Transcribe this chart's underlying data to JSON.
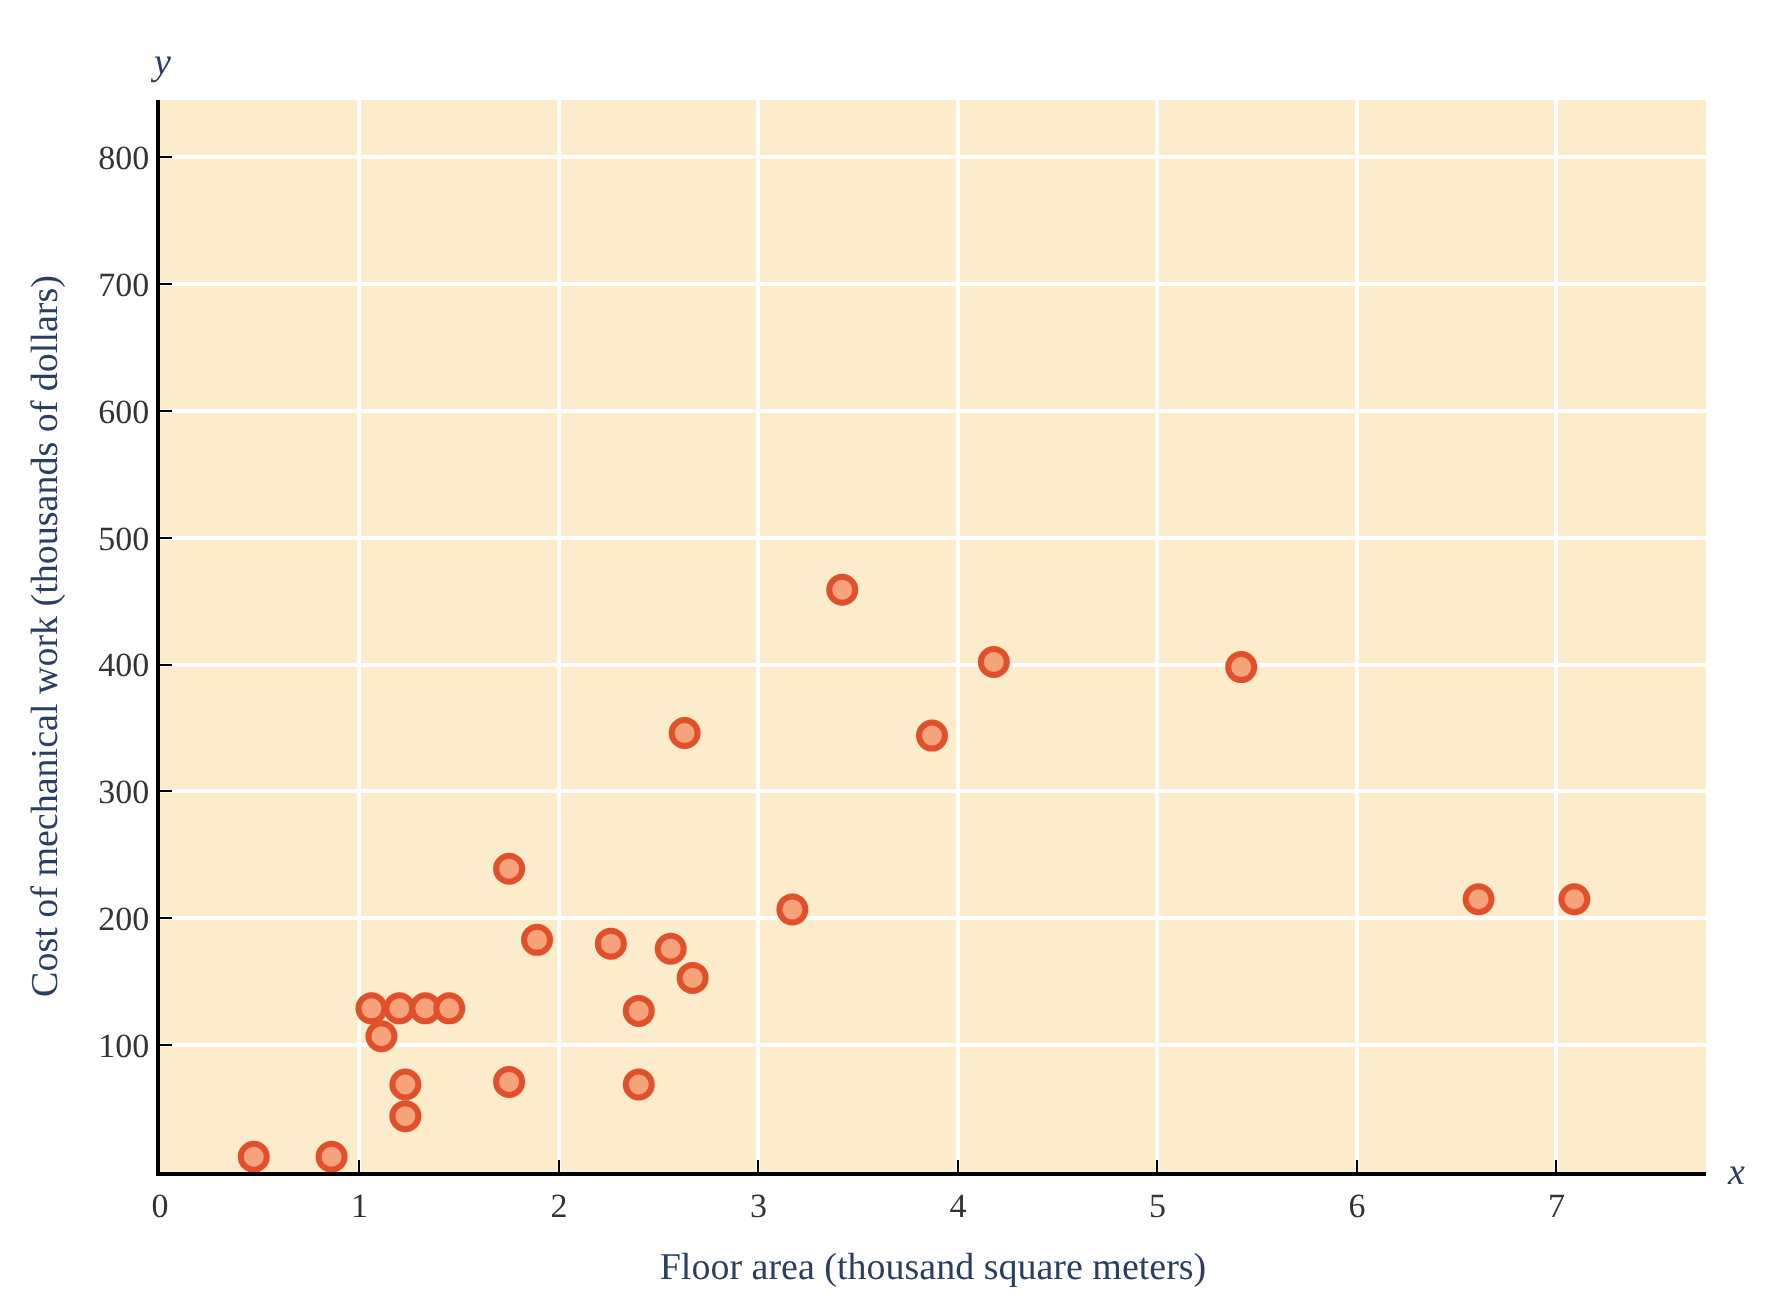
{
  "chart_data": {
    "type": "scatter",
    "xlabel": "Floor area (thousand square meters)",
    "ylabel": "Cost of mechanical work (thousands of dollars)",
    "annotations": [
      "x",
      "y"
    ],
    "x": [
      0.47,
      0.86,
      1.06,
      1.2,
      1.33,
      1.45,
      1.11,
      1.23,
      1.23,
      1.75,
      1.75,
      1.89,
      2.26,
      2.56,
      2.67,
      2.4,
      2.4,
      2.63,
      3.17,
      3.42,
      3.87,
      4.18,
      5.42,
      6.61,
      7.09
    ],
    "series": [
      {
        "color": "#e0502a",
        "values": [
          12,
          12,
          129,
          129,
          129,
          129,
          107,
          69,
          44,
          239,
          71,
          183,
          180,
          176,
          153,
          127,
          69,
          346,
          207,
          459,
          344,
          402,
          398,
          215,
          215
        ]
      }
    ],
    "xlim": [
      0,
      7.75
    ],
    "ylim": [
      0,
      845
    ],
    "xticks": [
      0,
      1,
      2,
      3,
      4,
      5,
      6,
      7
    ],
    "yticks": [
      100,
      200,
      300,
      400,
      500,
      600,
      700,
      800
    ],
    "grid": true,
    "marker": "circle",
    "legend": false
  }
}
